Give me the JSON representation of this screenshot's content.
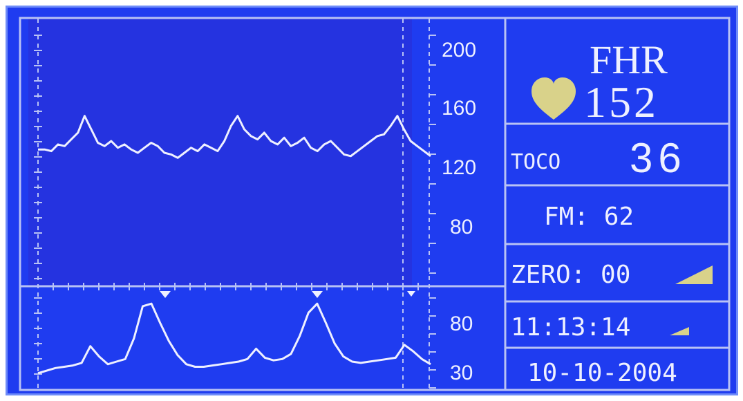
{
  "fhr": {
    "title": "FHR",
    "value": "152"
  },
  "toco": {
    "label": "TOCO",
    "value": "36"
  },
  "fm": {
    "text": "FM: 62"
  },
  "zero": {
    "text": "ZERO: 00"
  },
  "time": {
    "text": "11:13:14"
  },
  "date": {
    "text": "10-10-2004"
  },
  "fhr_axis": {
    "ticks": [
      "200",
      "160",
      "120",
      "80"
    ]
  },
  "toco_axis": {
    "ticks": [
      "80",
      "30"
    ]
  },
  "colors": {
    "screen_bg": "#1f3cf0",
    "plot_bg": "#2533e0",
    "lines": "#b8c2f5",
    "trace": "#eef0ff",
    "heart": "#d9d28a",
    "indicator": "#d9d28a"
  },
  "icons": [
    "heart-icon",
    "signal-indicator-icon",
    "fetal-movement-marker-icon"
  ],
  "chart_data": [
    {
      "type": "line",
      "ylim": [
        60,
        220
      ],
      "yticks": [
        200,
        160,
        120,
        80
      ],
      "series": [
        {
          "values": [
            142,
            142,
            141,
            145,
            144,
            148,
            152,
            162,
            154,
            146,
            144,
            147,
            143,
            145,
            142,
            140,
            143,
            146,
            144,
            140,
            139,
            137,
            140,
            143,
            141,
            145,
            143,
            141,
            147,
            156,
            162,
            154,
            150,
            148,
            152,
            147,
            145,
            149,
            144,
            146,
            149,
            143,
            141,
            145,
            147,
            143,
            139,
            138,
            141,
            144,
            147,
            150,
            151,
            156,
            162,
            154,
            147,
            144,
            141,
            138
          ]
        }
      ]
    },
    {
      "type": "line",
      "ylim": [
        20,
        100
      ],
      "yticks": [
        80,
        30
      ],
      "series": [
        {
          "values": [
            33,
            35,
            37,
            38,
            39,
            41,
            54,
            46,
            40,
            42,
            44,
            60,
            85,
            87,
            72,
            58,
            47,
            40,
            38,
            38,
            39,
            40,
            41,
            42,
            44,
            52,
            45,
            43,
            44,
            48,
            62,
            80,
            87,
            72,
            56,
            46,
            42,
            41,
            42,
            43,
            44,
            45,
            55,
            50,
            44,
            40
          ]
        }
      ]
    }
  ]
}
